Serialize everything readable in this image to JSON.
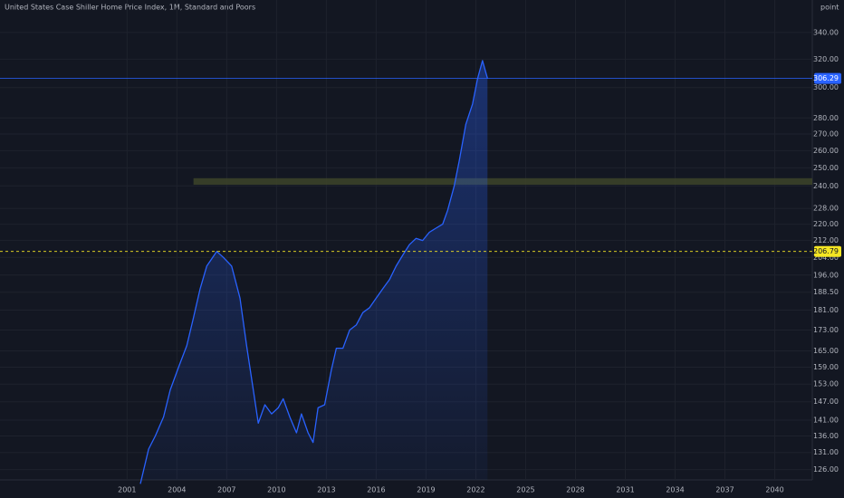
{
  "chart_data": {
    "type": "area",
    "title": "United States Case Shiller Home Price Index, 1M, Standard and Poors",
    "y_unit": "point",
    "log_scale": true,
    "grid": true,
    "color": "#2962ff",
    "x": [
      2001.8,
      2002.3,
      2002.7,
      2003.2,
      2003.6,
      2004.1,
      2004.6,
      2005.0,
      2005.4,
      2005.8,
      2006.4,
      2006.8,
      2007.3,
      2007.8,
      2008.2,
      2008.6,
      2008.9,
      2009.3,
      2009.7,
      2010.1,
      2010.4,
      2010.8,
      2011.2,
      2011.5,
      2011.9,
      2012.2,
      2012.5,
      2012.9,
      2013.3,
      2013.6,
      2014.0,
      2014.4,
      2014.8,
      2015.2,
      2015.6,
      2016.0,
      2016.4,
      2016.8,
      2017.2,
      2017.6,
      2018.0,
      2018.4,
      2018.8,
      2019.2,
      2019.6,
      2020.0,
      2020.3,
      2020.7,
      2021.0,
      2021.4,
      2021.8,
      2022.1,
      2022.4,
      2022.7
    ],
    "values": [
      122,
      132,
      136,
      142,
      151,
      159,
      167,
      178,
      190,
      200,
      206.79,
      204,
      200,
      186,
      167,
      151,
      140,
      146,
      143,
      145,
      148,
      142,
      137,
      143,
      137,
      134,
      145,
      146,
      158,
      166,
      166,
      173,
      175,
      180,
      182,
      186,
      190,
      194,
      200,
      205,
      210,
      213,
      212,
      216,
      218,
      220,
      227,
      240,
      254,
      276,
      289,
      306,
      319,
      306.29
    ],
    "xlim": [
      1993.35,
      2042.26
    ],
    "xticks": [
      2001,
      2004,
      2007,
      2010,
      2013,
      2016,
      2019,
      2022,
      2025,
      2028,
      2031,
      2034,
      2037,
      2040
    ],
    "ylim": [
      123.1,
      366
    ],
    "yticks": [
      {
        "value": 126,
        "label": "126.00"
      },
      {
        "value": 131,
        "label": "131.00"
      },
      {
        "value": 136,
        "label": "136.00"
      },
      {
        "value": 141,
        "label": "141.00"
      },
      {
        "value": 147,
        "label": "147.00"
      },
      {
        "value": 153,
        "label": "153.00"
      },
      {
        "value": 159,
        "label": "159.00"
      },
      {
        "value": 165,
        "label": "165.00"
      },
      {
        "value": 173,
        "label": "173.00"
      },
      {
        "value": 181,
        "label": "181.00"
      },
      {
        "value": 188.5,
        "label": "188.50"
      },
      {
        "value": 196,
        "label": "196.00"
      },
      {
        "value": 204,
        "label": "204.00"
      },
      {
        "value": 212,
        "label": "212.00"
      },
      {
        "value": 220,
        "label": "220.00"
      },
      {
        "value": 228,
        "label": "228.00"
      },
      {
        "value": 240,
        "label": "240.00"
      },
      {
        "value": 250,
        "label": "250.00"
      },
      {
        "value": 260,
        "label": "260.00"
      },
      {
        "value": 270,
        "label": "270.00"
      },
      {
        "value": 280,
        "label": "280.00"
      },
      {
        "value": 300,
        "label": "300.00"
      },
      {
        "value": 320,
        "label": "320.00"
      },
      {
        "value": 340,
        "label": "340.00"
      }
    ],
    "highlight_band": {
      "range": [
        240.6,
        244.2
      ],
      "start_x": 2005.0,
      "color": "#3d4429"
    },
    "price_lines": [
      {
        "value": 306.29,
        "color": "#2962ff",
        "text_color": "#ffffff",
        "style": "solid"
      },
      {
        "value": 206.79,
        "color": "#f5e623",
        "text_color": "#131722",
        "style": "dashed"
      }
    ]
  }
}
